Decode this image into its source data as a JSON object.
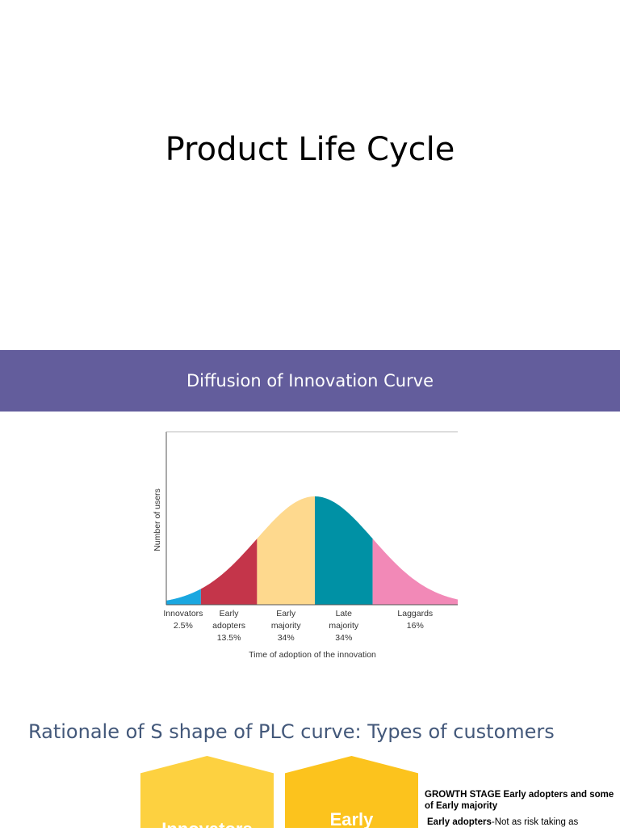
{
  "slide": {
    "title": "Product Life Cycle"
  },
  "banner": {
    "title": "Diffusion of Innovation Curve",
    "color": "#635d9c"
  },
  "chart_data": {
    "type": "area",
    "xlabel": "Time of adoption of the innovation",
    "ylabel": "Number of users",
    "segments": [
      {
        "name": "Innovators",
        "line1": "Innovators",
        "line2": "",
        "pct_label": "2.5%",
        "value": 2.5,
        "color": "#1aa7e0"
      },
      {
        "name": "Early adopters",
        "line1": "Early",
        "line2": "adopters",
        "pct_label": "13.5%",
        "value": 13.5,
        "color": "#c4354a"
      },
      {
        "name": "Early majority",
        "line1": "Early",
        "line2": "majority",
        "pct_label": "34%",
        "value": 34,
        "color": "#fed98e"
      },
      {
        "name": "Late majority",
        "line1": "Late",
        "line2": "majority",
        "pct_label": "34%",
        "value": 34,
        "color": "#0091a5"
      },
      {
        "name": "Laggards",
        "line1": "Laggards",
        "line2": "",
        "pct_label": "16%",
        "value": 16,
        "color": "#f289b7"
      }
    ],
    "grid": false,
    "legend": "none"
  },
  "rationale": {
    "title": "Rationale of S shape of PLC curve: Types of customers",
    "title_color": "#43587a",
    "shapes": [
      {
        "label": "Innovators",
        "color": "#fdd140"
      },
      {
        "label": "Early",
        "color": "#fcc31d"
      }
    ],
    "side_heading": "GROWTH STAGE Early adopters and some of Early majority",
    "side_term": "Early adopters",
    "side_text": "-Not as risk taking as"
  }
}
